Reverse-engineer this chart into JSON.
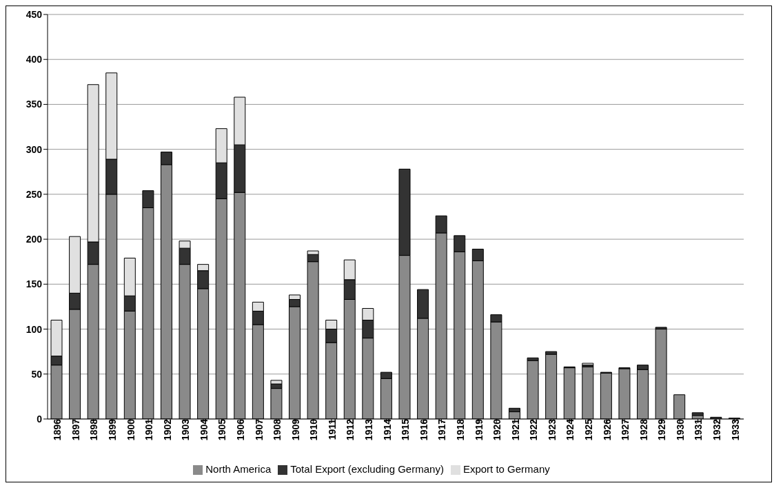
{
  "chart_data": {
    "type": "bar",
    "stacked": true,
    "categories": [
      "1896",
      "1897",
      "1898",
      "1899",
      "1900",
      "1901",
      "1902",
      "1903",
      "1904",
      "1905",
      "1906",
      "1907",
      "1908",
      "1909",
      "1910",
      "1911",
      "1912",
      "1913",
      "1914",
      "1915",
      "1916",
      "1917",
      "1918",
      "1919",
      "1920",
      "1921",
      "1922",
      "1923",
      "1924",
      "1925",
      "1926",
      "1927",
      "1928",
      "1929",
      "1930",
      "1931",
      "1932",
      "1933"
    ],
    "series": [
      {
        "name": "North America",
        "color": "#8a8a8a",
        "values": [
          60,
          122,
          172,
          250,
          120,
          235,
          283,
          172,
          145,
          245,
          252,
          105,
          34,
          125,
          175,
          85,
          133,
          90,
          45,
          182,
          112,
          207,
          186,
          176,
          108,
          8,
          65,
          72,
          57,
          58,
          51,
          56,
          55,
          100,
          27,
          4,
          0,
          0
        ]
      },
      {
        "name": "Total Export (excluding Germany)",
        "color": "#333333",
        "values": [
          10,
          18,
          25,
          39,
          17,
          19,
          14,
          18,
          20,
          40,
          53,
          15,
          5,
          8,
          8,
          15,
          22,
          20,
          7,
          96,
          32,
          19,
          18,
          13,
          8,
          4,
          3,
          3,
          1,
          2,
          1,
          1,
          5,
          2,
          0,
          3,
          2,
          1
        ]
      },
      {
        "name": "Export to Germany",
        "color": "#e0e0e0",
        "values": [
          40,
          63,
          175,
          96,
          42,
          0,
          0,
          8,
          7,
          38,
          53,
          10,
          4,
          5,
          4,
          10,
          22,
          13,
          0,
          0,
          0,
          0,
          0,
          0,
          0,
          0,
          0,
          0,
          0,
          2,
          0,
          0,
          0,
          0,
          0,
          0,
          0,
          0
        ]
      }
    ],
    "ylim": [
      0,
      450
    ],
    "yticks": [
      0,
      50,
      100,
      150,
      200,
      250,
      300,
      350,
      400,
      450
    ],
    "grid": "y",
    "legend": "bottom"
  }
}
